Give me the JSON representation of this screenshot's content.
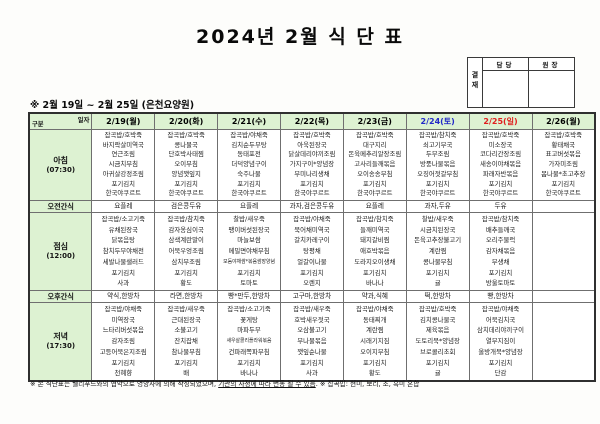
{
  "page": {
    "title": "2024년 2월 식 단 표",
    "subtitle": "※  2월 19일 ~ 2월 25일 (은천요양원)"
  },
  "approval": {
    "stamp": "결재",
    "columns": [
      "담당",
      "원장"
    ]
  },
  "colors": {
    "header_green": "#ddf2d2",
    "weekday": "#000000",
    "saturday": "#2228c8",
    "sunday": "#e01d1d"
  },
  "table": {
    "corner": {
      "top": "일자",
      "bottom": "구분"
    },
    "row_labels": {
      "breakfast": "아침",
      "breakfast_time": "(07:30)",
      "am_snack": "오전간식",
      "lunch": "점심",
      "lunch_time": "(12:00)",
      "pm_snack": "오후간식",
      "dinner": "저녁",
      "dinner_time": "(17:30)"
    },
    "columns": [
      {
        "label": "2/19(월)",
        "color": "#000000"
      },
      {
        "label": "2/20(화)",
        "color": "#000000"
      },
      {
        "label": "2/21(수)",
        "color": "#000000"
      },
      {
        "label": "2/22(목)",
        "color": "#000000"
      },
      {
        "label": "2/23(금)",
        "color": "#000000"
      },
      {
        "label": "2/24(토)",
        "color": "#2228c8"
      },
      {
        "label": "2/25(일)",
        "color": "#e01d1d"
      },
      {
        "label": "2/26(월)",
        "color": "#000000"
      }
    ],
    "meals": {
      "breakfast": [
        [
          "잡곡밥/호박죽",
          "바지락살미역국",
          "연근조림",
          "시금치무침",
          "아귀살강정조림",
          "포기김치",
          "한국야쿠르트"
        ],
        [
          "잡곡밥/호박죽",
          "콩나물국",
          "단호박사태찜",
          "오이무침",
          "양념깻잎지",
          "포기김치",
          "한국야쿠르트"
        ],
        [
          "잡곡밥/야채죽",
          "김치순두부탕",
          "동태포전",
          "더덕양념구이",
          "숙주나물",
          "포기김치",
          "한국야쿠르트"
        ],
        [
          "잡곡밥/호박죽",
          "아욱된장국",
          "닭살데리야끼조림",
          "가지구이*양념장",
          "무미나리생채",
          "포기김치",
          "한국야쿠르트"
        ],
        [
          "잡곡밥/호박죽",
          "대구지리",
          "돈육메추리알장조림",
          "고사리들깨볶음",
          "오이송송무침",
          "포기김치",
          "한국야쿠르트"
        ],
        [
          "잡곡밥/참치죽",
          "쇠고기무국",
          "두부조림",
          "방풍나물볶음",
          "오징어젓갈무침",
          "포기김치",
          "한국야쿠르트"
        ],
        [
          "잡곡밥/호박죽",
          "미소장국",
          "코다리간장조림",
          "새송이야채볶음",
          "파래자반볶음",
          "포기김치",
          "한국야쿠르트"
        ],
        [
          "잡곡밥/호박죽",
          "황태채국",
          "표고버섯볶음",
          "가자미조림",
          "봄나물*초고추장",
          "포기김치",
          "한국야쿠르트"
        ]
      ],
      "am_snack": [
        "요플레",
        "검은콩두유",
        "요플레",
        "과자,검은콩두유",
        "요플레",
        "과자,두유",
        "두유",
        ""
      ],
      "lunch": [
        [
          "잡곡밥/소고기죽",
          "유채된장국",
          "닭볶음탕",
          "참치두부야채전",
          "세발나물샐러드",
          "포기김치",
          "사과"
        ],
        [
          "잡곡밥/참치죽",
          "감자옹심이국",
          "삼색계란말이",
          "어묵우엉조림",
          "삼치무조림",
          "포기김치",
          "황도"
        ],
        [
          "찰밥/새우죽",
          "팽이버섯된장국",
          "마늘보쌈",
          "메밀면야채무침",
          "모둠야채쌈*볶음쌈장양념",
          "포기김치",
          "토마토"
        ],
        [
          "잡곡밥/야채죽",
          "북어채미역국",
          "갈치카레구이",
          "탕평채",
          "얼갈이나물",
          "포기김치",
          "오렌지"
        ],
        [
          "잡곡밥/참치죽",
          "들깨미역국",
          "돼지갈비찜",
          "애호박볶음",
          "도라지오이생채",
          "포기김치",
          "바나나"
        ],
        [
          "찰밥/새우죽",
          "시금치된장국",
          "돈육고추장불고기",
          "계란찜",
          "콩나물무침",
          "포기김치",
          "귤"
        ],
        [
          "잡곡밥/참치죽",
          "배추들깨국",
          "오리주물럭",
          "감자채볶음",
          "무생채",
          "포기김치",
          "방울토마토"
        ],
        []
      ],
      "pm_snack": [
        "약식,한방차",
        "라면,한방차",
        "빵*만두,한방차",
        "고구마,한방차",
        "약과,식혜",
        "떡,한방차",
        "빵,한방차",
        ""
      ],
      "dinner": [
        [
          "잡곡밥/야채죽",
          "미역장국",
          "느타리버섯볶음",
          "감자조림",
          "고등어묵은지조림",
          "포기김치",
          "천혜향"
        ],
        [
          "잡곡밥/새우죽",
          "근대된장국",
          "소불고기",
          "잔치잡채",
          "참나물무침",
          "포기김치",
          "배"
        ],
        [
          "잡곡밥/소고기죽",
          "꽃게탕",
          "마파두부",
          "새우살콜리플라워볶음",
          "건파래쪽파무침",
          "포기김치",
          "바나나"
        ],
        [
          "잡곡밥/새우죽",
          "호박새우젓국",
          "오삼불고기",
          "무나물볶음",
          "깻잎순나물",
          "포기김치",
          "사과"
        ],
        [
          "잡곡밥/야채죽",
          "동태찌개",
          "계란찜",
          "시래기지짐",
          "오이지무침",
          "포기김치",
          "황도"
        ],
        [
          "잡곡밥/호박죽",
          "김치콩나물국",
          "제육볶음",
          "도토리묵*양념장",
          "브로콜리초회",
          "포기김치",
          "귤"
        ],
        [
          "잡곡밥/야채죽",
          "어묵김치국",
          "삼치데리야끼구이",
          "열무지짐이",
          "올방개묵*양념장",
          "포기김치",
          "단감"
        ],
        []
      ]
    }
  },
  "footnote": {
    "part1": "※ 본 식단표는 웰리푸드와의 협약으로 영양사에 의해 작성되었으며, ",
    "underlined": "기관의 사정에 따라 변동 될 수 있음",
    "part2": ". ※ 잡곡밥: 현미, 보리, 조, 흑미 혼합"
  }
}
